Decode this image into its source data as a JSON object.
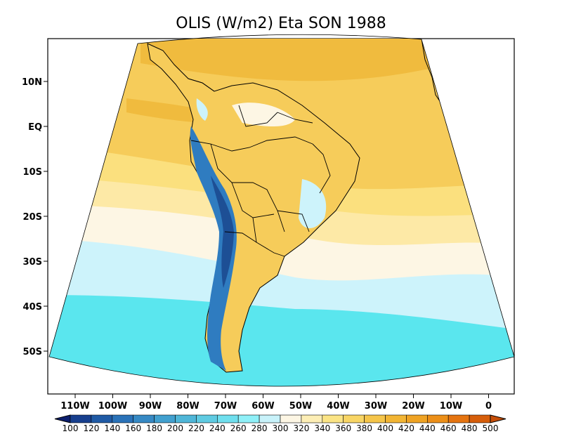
{
  "title": "OLIS (W/m2) Eta SON 1988",
  "lat_labels": [
    "10N",
    "EQ",
    "10S",
    "20S",
    "30S",
    "40S",
    "50S"
  ],
  "lon_labels": [
    "110W",
    "100W",
    "90W",
    "80W",
    "70W",
    "60W",
    "50W",
    "40W",
    "30W",
    "20W",
    "10W",
    "0"
  ],
  "colorbar": {
    "labels": [
      "100",
      "120",
      "140",
      "160",
      "180",
      "200",
      "220",
      "240",
      "260",
      "280",
      "300",
      "320",
      "340",
      "360",
      "380",
      "400",
      "420",
      "440",
      "460",
      "480",
      "500"
    ],
    "colors": [
      "#0c1f6e",
      "#173f8e",
      "#1f5aa5",
      "#2a72b8",
      "#3689c4",
      "#41a0cf",
      "#4fb6d8",
      "#5fcbe2",
      "#6fdfee",
      "#8ff0f8",
      "#c8f2fa",
      "#fdf6e4",
      "#fdeeb5",
      "#fbe485",
      "#f8d565",
      "#f5c54a",
      "#f2b534",
      "#efa324",
      "#ec8f18",
      "#e57410",
      "#d65e0b",
      "#c64e08"
    ]
  },
  "map_colors": {
    "ocean_south": "#5ae6ee",
    "ocean_light": "#cdf3fb",
    "cream": "#fdf6e4",
    "pale_yellow": "#fde9a6",
    "yellow": "#fbe07e",
    "gold": "#f6cc5a",
    "orange": "#f0bb3e",
    "andes": "#2f7cc0",
    "andes_high": "#1d4f95",
    "coast_line": "#000000"
  }
}
